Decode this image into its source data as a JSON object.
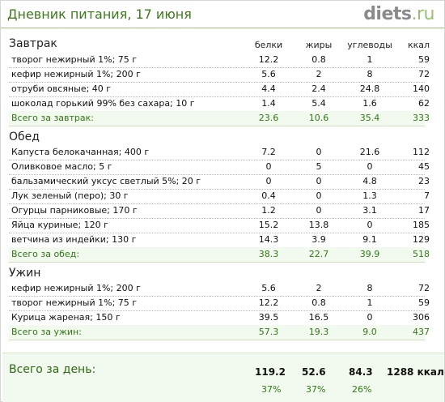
{
  "header": {
    "title": "Дневник питания, 17 июня",
    "logo_main": "diets",
    "logo_suffix": ".ru"
  },
  "columns": {
    "protein": "белки",
    "fat": "жиры",
    "carbs": "углеводы",
    "kcal": "ккал"
  },
  "sections": [
    {
      "title": "Завтрак",
      "items": [
        {
          "name": "творог нежирный 1%; 75 г",
          "protein": "12.2",
          "fat": "0.8",
          "carbs": "1",
          "kcal": "59"
        },
        {
          "name": "кефир нежирный 1%; 200 г",
          "protein": "5.6",
          "fat": "2",
          "carbs": "8",
          "kcal": "72"
        },
        {
          "name": "отруби овсяные; 40 г",
          "protein": "4.4",
          "fat": "2.4",
          "carbs": "24.8",
          "kcal": "140"
        },
        {
          "name": "шоколад горький 99% без сахара; 10 г",
          "protein": "1.4",
          "fat": "5.4",
          "carbs": "1.6",
          "kcal": "62"
        }
      ],
      "total": {
        "name": "Всего за завтрак:",
        "protein": "23.6",
        "fat": "10.6",
        "carbs": "35.4",
        "kcal": "333"
      }
    },
    {
      "title": "Обед",
      "items": [
        {
          "name": "Капуста белокачанная; 400 г",
          "protein": "7.2",
          "fat": "0",
          "carbs": "21.6",
          "kcal": "112"
        },
        {
          "name": "Оливковое масло; 5 г",
          "protein": "0",
          "fat": "5",
          "carbs": "0",
          "kcal": "45"
        },
        {
          "name": "бальзамический уксус светлый 5%; 20 г",
          "protein": "0",
          "fat": "0",
          "carbs": "4.8",
          "kcal": "23"
        },
        {
          "name": "Лук зеленый (перо); 30 г",
          "protein": "0.4",
          "fat": "0",
          "carbs": "1.3",
          "kcal": "7"
        },
        {
          "name": "Огурцы парниковые; 170 г",
          "protein": "1.2",
          "fat": "0",
          "carbs": "3.1",
          "kcal": "17"
        },
        {
          "name": "Яйца куриные; 120 г",
          "protein": "15.2",
          "fat": "13.8",
          "carbs": "0",
          "kcal": "185"
        },
        {
          "name": "ветчина из индейки; 130 г",
          "protein": "14.3",
          "fat": "3.9",
          "carbs": "9.1",
          "kcal": "129"
        }
      ],
      "total": {
        "name": "Всего за обед:",
        "protein": "38.3",
        "fat": "22.7",
        "carbs": "39.9",
        "kcal": "518"
      }
    },
    {
      "title": "Ужин",
      "items": [
        {
          "name": "кефир нежирный 1%; 200 г",
          "protein": "5.6",
          "fat": "2",
          "carbs": "8",
          "kcal": "72"
        },
        {
          "name": "творог нежирный 1%; 75 г",
          "protein": "12.2",
          "fat": "0.8",
          "carbs": "1",
          "kcal": "59"
        },
        {
          "name": "Курица жареная; 150 г",
          "protein": "39.5",
          "fat": "16.5",
          "carbs": "0",
          "kcal": "306"
        }
      ],
      "total": {
        "name": "Всего за ужин:",
        "protein": "57.3",
        "fat": "19.3",
        "carbs": "9.0",
        "kcal": "437"
      }
    }
  ],
  "day_total": {
    "label": "Всего за день:",
    "protein": "119.2",
    "fat": "52.6",
    "carbs": "84.3",
    "kcal": "1288 ккал",
    "protein_pct": "37%",
    "fat_pct": "37%",
    "carbs_pct": "26%"
  }
}
